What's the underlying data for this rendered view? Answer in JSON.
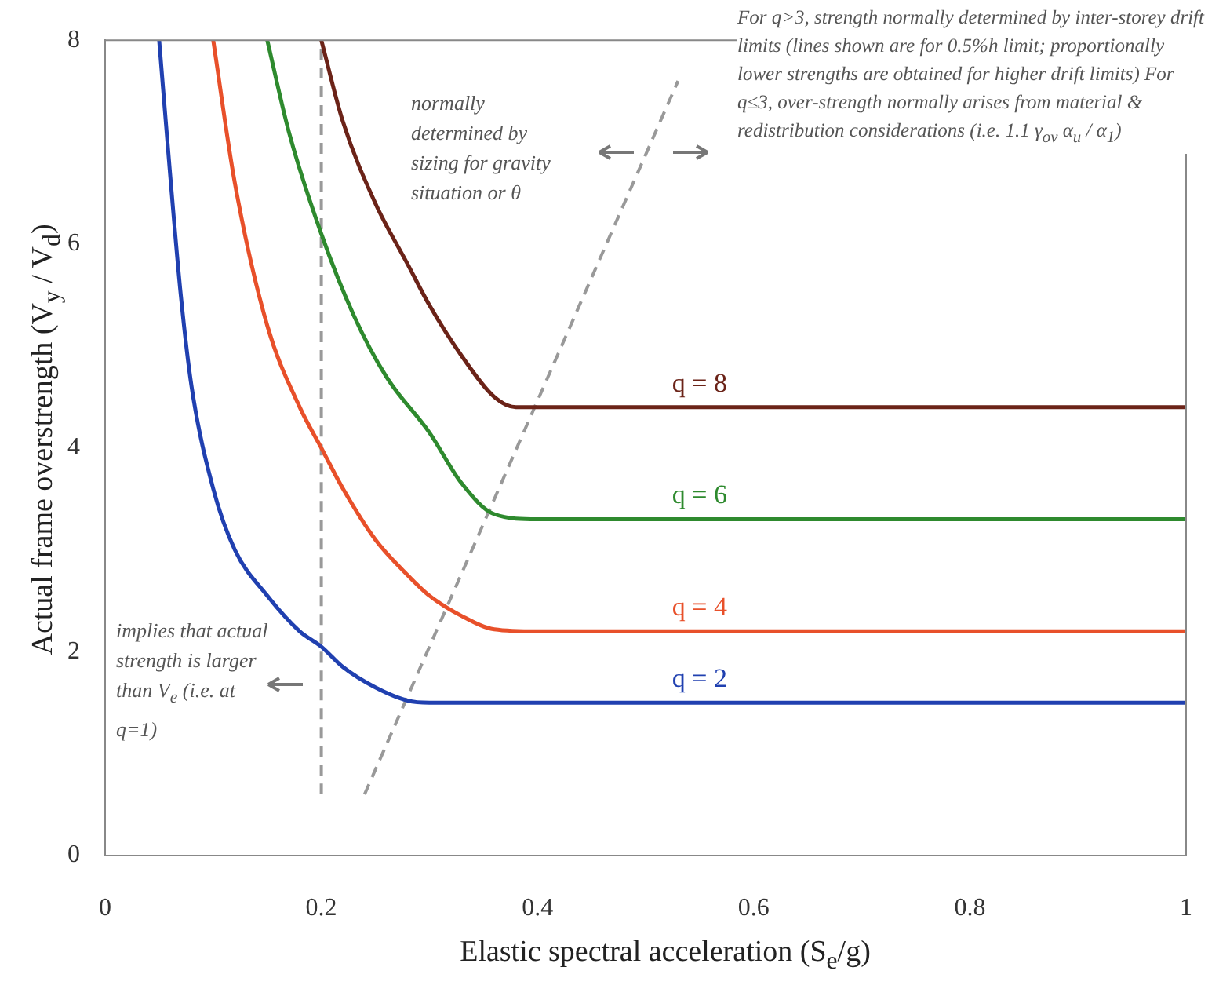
{
  "chart_data": {
    "type": "line",
    "xlabel": "Elastic spectral acceleration (S$_{e}$/g)",
    "ylabel": "Actual frame overstrength (V$_{y}$ / V$_{d}$)",
    "xlim": [
      0,
      1
    ],
    "xticks": [
      0,
      0.2,
      0.4,
      0.6,
      0.8,
      1
    ],
    "ylim": [
      0,
      8
    ],
    "yticks": [
      0,
      2,
      4,
      6,
      8
    ],
    "grid": false,
    "legend": false,
    "marker": "none",
    "series": [
      {
        "name": "q = 2",
        "color": "#2040b0",
        "x": [
          0.05,
          0.06,
          0.07,
          0.08,
          0.1,
          0.12,
          0.15,
          0.18,
          0.2,
          0.22,
          0.25,
          0.28,
          0.3,
          0.4,
          0.6,
          0.8,
          1
        ],
        "values": [
          8,
          6.7,
          5.5,
          4.6,
          3.6,
          3.0,
          2.55,
          2.2,
          2.05,
          1.85,
          1.65,
          1.52,
          1.5,
          1.5,
          1.5,
          1.5,
          1.5
        ]
      },
      {
        "name": "q = 4",
        "color": "#e8502a",
        "x": [
          0.1,
          0.12,
          0.15,
          0.18,
          0.2,
          0.22,
          0.25,
          0.28,
          0.3,
          0.33,
          0.36,
          0.4,
          0.6,
          0.8,
          1
        ],
        "values": [
          8,
          6.6,
          5.2,
          4.4,
          4.0,
          3.6,
          3.1,
          2.75,
          2.55,
          2.35,
          2.22,
          2.2,
          2.2,
          2.2,
          2.2
        ]
      },
      {
        "name": "q = 6",
        "color": "#2e8a2e",
        "x": [
          0.15,
          0.17,
          0.2,
          0.23,
          0.26,
          0.3,
          0.33,
          0.36,
          0.4,
          0.6,
          0.8,
          1
        ],
        "values": [
          8,
          7.1,
          6.1,
          5.3,
          4.7,
          4.15,
          3.65,
          3.35,
          3.3,
          3.3,
          3.3,
          3.3
        ]
      },
      {
        "name": "q = 8",
        "color": "#6b2318",
        "x": [
          0.2,
          0.22,
          0.25,
          0.28,
          0.3,
          0.33,
          0.36,
          0.38,
          0.4,
          0.6,
          0.8,
          1
        ],
        "values": [
          8,
          7.2,
          6.4,
          5.8,
          5.4,
          4.9,
          4.5,
          4.4,
          4.4,
          4.4,
          4.4,
          4.4
        ]
      },
      {
        "color": "#999999",
        "line_style": "dashed",
        "x": [
          0.2,
          0.2
        ],
        "values": [
          0.6,
          8
        ]
      },
      {
        "color": "#999999",
        "line_style": "dashed",
        "x": [
          0.24,
          0.53
        ],
        "values": [
          0.6,
          7.6
        ]
      }
    ],
    "annotations": [
      "implies that actual strength is larger than V$_{e}$ (i.e. at q=1)",
      "normally determined by sizing for gravity situation or θ",
      "For q>3, strength normally determined by inter-storey drift limits (lines shown are for 0.5%h limit; proportionally lower strengths are obtained for higher drift limits) For q≤3, over-strength normally arises from material & redistribution considerations (i.e. 1.1 γ$_{ov}$ α$_{u}$ / α$_{1}$)"
    ]
  }
}
